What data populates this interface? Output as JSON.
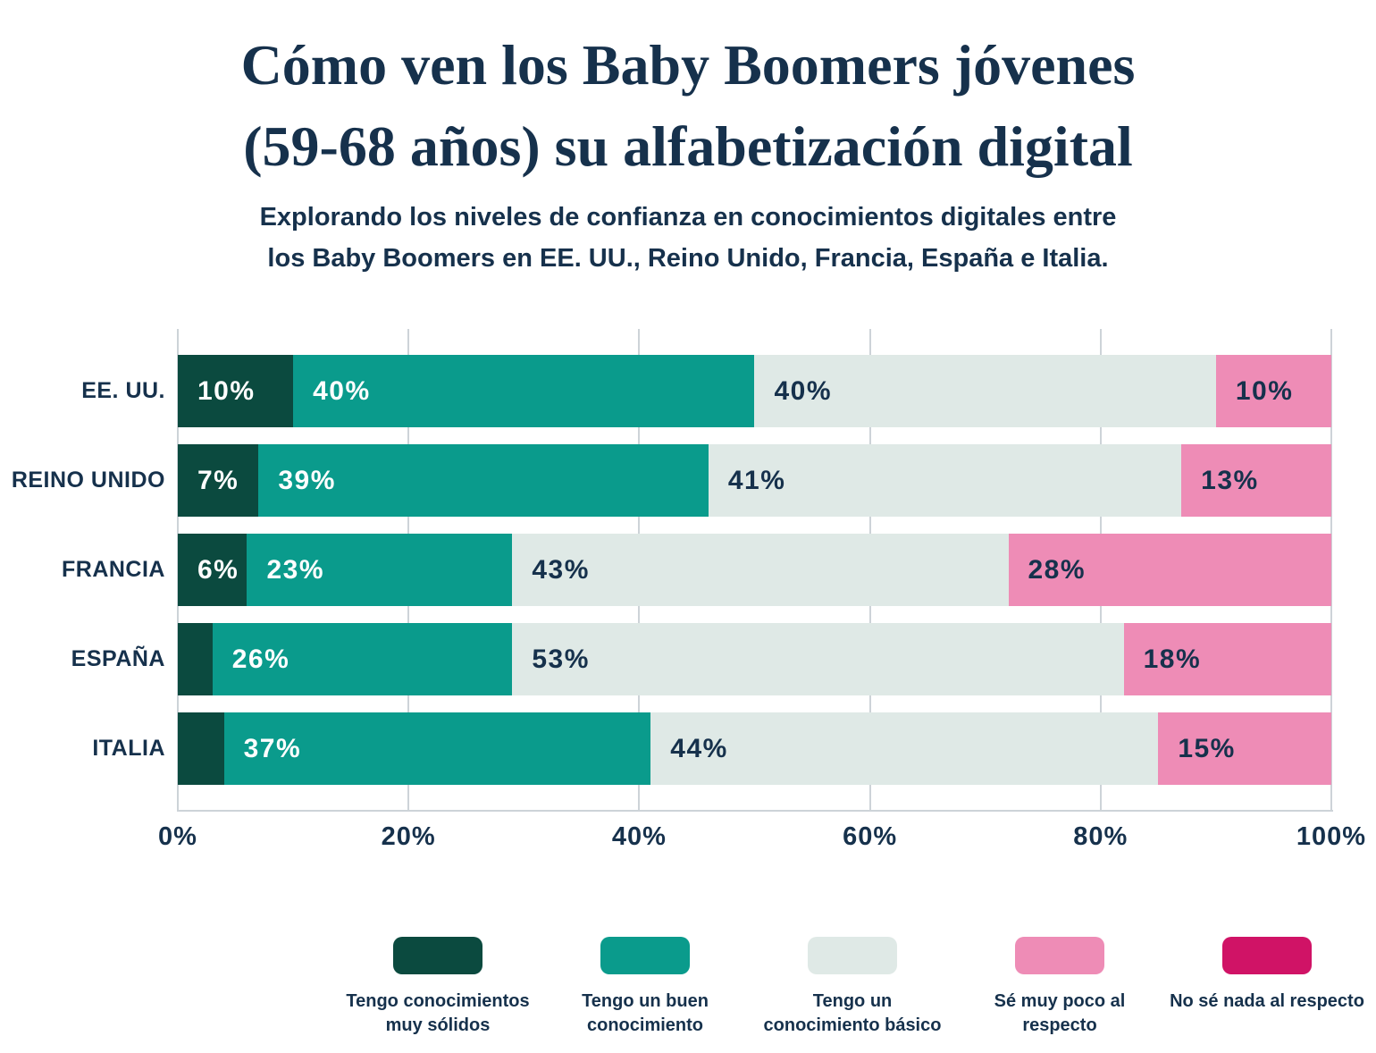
{
  "title": {
    "line1": "Cómo ven los Baby Boomers jóvenes",
    "line2": "(59-68 años) su alfabetización digital"
  },
  "subtitle": {
    "line1": "Explorando los niveles de confianza en conocimientos digitales entre",
    "line2": "los Baby Boomers en EE. UU., Reino Unido, Francia, España e Italia."
  },
  "colors": {
    "text_navy": "#16314C",
    "gridline": "#CDD3D8",
    "background": "#FFFFFF"
  },
  "chart_data": {
    "type": "bar",
    "stacked": true,
    "orientation": "horizontal",
    "grid": true,
    "xlim": [
      0,
      100
    ],
    "x_ticks": [
      "0%",
      "20%",
      "40%",
      "60%",
      "80%",
      "100%"
    ],
    "label_min_value": 5,
    "categories": [
      "EE. UU.",
      "REINO UNIDO",
      "FRANCIA",
      "ESPAÑA",
      "ITALIA"
    ],
    "series": [
      {
        "name": "Tengo conocimientos muy sólidos",
        "color": "#0B4A3F",
        "value_label_color": "#FFFFFF",
        "values": [
          10,
          7,
          6,
          3,
          4
        ]
      },
      {
        "name": "Tengo un buen conocimiento",
        "color": "#0A9B8C",
        "value_label_color": "#FFFFFF",
        "values": [
          40,
          39,
          23,
          26,
          37
        ]
      },
      {
        "name": "Tengo un conocimiento básico",
        "color": "#DFE9E6",
        "value_label_color": "#16314C",
        "values": [
          40,
          41,
          43,
          53,
          44
        ]
      },
      {
        "name": "Sé muy poco al respecto",
        "color": "#EE8CB6",
        "value_label_color": "#16314C",
        "values": [
          10,
          13,
          28,
          18,
          15
        ]
      },
      {
        "name": "No sé nada al respecto",
        "color": "#D01366",
        "value_label_color": "#FFFFFF",
        "values": [
          0,
          0,
          0,
          0,
          0
        ]
      }
    ],
    "legend_position": "bottom"
  }
}
